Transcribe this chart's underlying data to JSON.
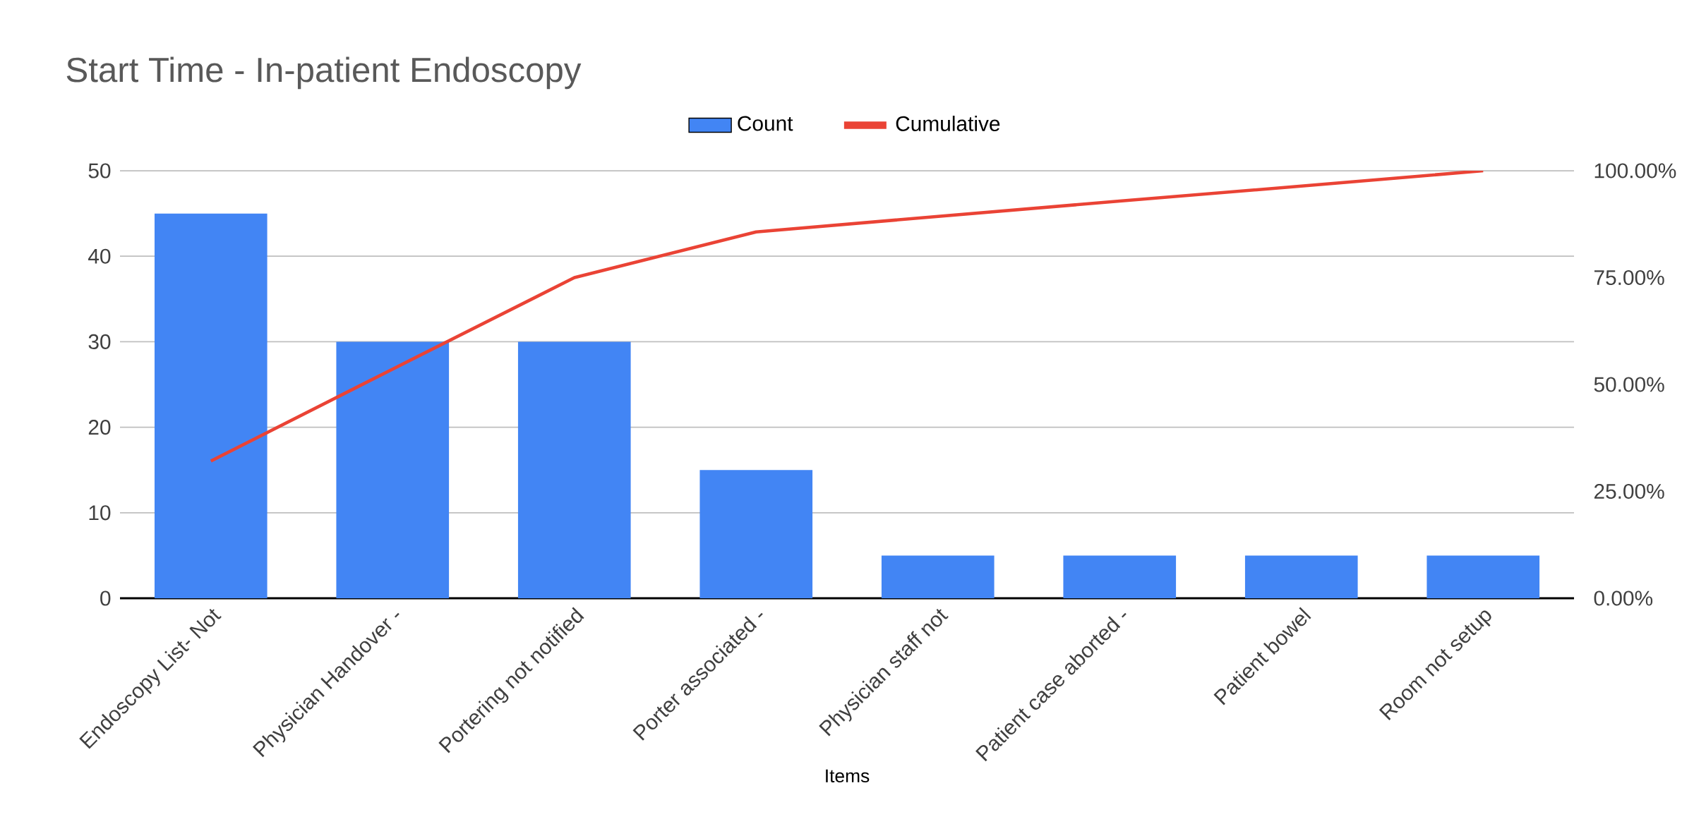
{
  "chart_data": {
    "type": "bar",
    "title": "Start Time - In-patient Endoscopy",
    "xlabel": "Items",
    "categories": [
      "Endoscopy List- Not",
      "Physician Handover -",
      "Portering not notified",
      "Porter associated -",
      "Physician staff not",
      "Patient case aborted -",
      "Patient bowel",
      "Room not setup"
    ],
    "series": [
      {
        "name": "Count",
        "color": "#4285f4",
        "values": [
          45,
          30,
          30,
          15,
          5,
          5,
          5,
          5
        ]
      },
      {
        "name": "Cumulative",
        "type": "line",
        "axis": "y2",
        "color": "#ea4335",
        "values": [
          32.1,
          53.6,
          75,
          85.7,
          89.3,
          92.9,
          96.4,
          100
        ]
      }
    ],
    "ylim": [
      0,
      50
    ],
    "yticks": [
      0,
      10,
      20,
      30,
      40,
      50
    ],
    "y2lim": [
      0,
      100
    ],
    "y2ticks": [
      {
        "value": 0,
        "label": "0.00%"
      },
      {
        "value": 25,
        "label": "25.00%"
      },
      {
        "value": 50,
        "label": "50.00%"
      },
      {
        "value": 75,
        "label": "75.00%"
      },
      {
        "value": 100,
        "label": "100.00%"
      }
    ],
    "grid": "y",
    "legend": "top"
  }
}
